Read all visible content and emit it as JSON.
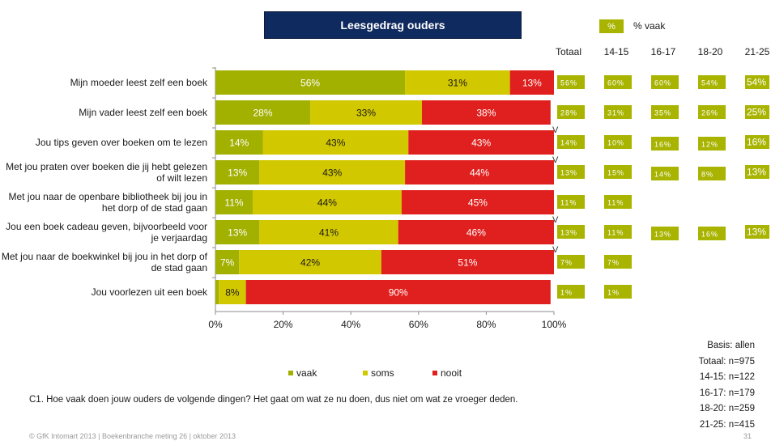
{
  "title": "Leesgedrag ouders",
  "top_legend": {
    "swatch_text": "%",
    "label": "% vaak",
    "color": "#a8b400"
  },
  "columns": [
    "Totaal",
    "14-15",
    "16-17",
    "18-20",
    "21-25"
  ],
  "colors": {
    "vaak": "#a2b000",
    "soms": "#d2c800",
    "nooit": "#e0201e",
    "badge": "#a8b400"
  },
  "legend": [
    "vaak",
    "soms",
    "nooit"
  ],
  "question": "C1. Hoe vaak doen jouw ouders de volgende dingen? Het gaat om wat ze nu doen, dus niet om wat ze vroeger deden.",
  "footer": "© GfK Intomart 2013 | Boekenbranche meting 26 | oktober 2013",
  "page_number": "31",
  "basis": [
    "Basis: allen",
    "Totaal: n=975",
    "14-15: n=122",
    "16-17: n=179",
    "18-20: n=259",
    "21-25: n=415"
  ],
  "chart_data": {
    "type": "bar",
    "orientation": "horizontal",
    "stacked": true,
    "x_ticks": [
      "0%",
      "20%",
      "40%",
      "60%",
      "80%",
      "100%"
    ],
    "xlim": [
      0,
      100
    ],
    "categories": [
      "Mijn moeder leest zelf een boek",
      "Mijn vader leest zelf een boek",
      "Jou tips geven over boeken om te lezen",
      "Met jou praten over boeken die jij hebt gelezen of wilt lezen",
      "Met jou naar de openbare bibliotheek bij jou in het dorp of de stad gaan",
      "Jou een boek cadeau geven, bijvoorbeeld voor je verjaardag",
      "Met jou naar de boekwinkel bij jou in het dorp of de stad gaan",
      "Jou voorlezen uit een boek"
    ],
    "series": [
      {
        "name": "vaak",
        "values": [
          56,
          28,
          14,
          13,
          11,
          13,
          7,
          1
        ]
      },
      {
        "name": "soms",
        "values": [
          31,
          33,
          43,
          43,
          44,
          41,
          42,
          8
        ]
      },
      {
        "name": "nooit",
        "values": [
          13,
          38,
          43,
          44,
          45,
          46,
          51,
          90
        ]
      }
    ],
    "vaak_by_age": [
      [
        "56%",
        "60%",
        "60%",
        "54%",
        "54%"
      ],
      [
        "28%",
        "31%",
        "35%",
        "26%",
        "25%"
      ],
      [
        "14%",
        "10%",
        "16%",
        "12%",
        "16%"
      ],
      [
        "13%",
        "15%",
        "14%",
        "8%",
        "13%"
      ],
      [
        "11%",
        "11%",
        "",
        "",
        ""
      ],
      [
        "13%",
        "11%",
        "13%",
        "16%",
        "13%"
      ],
      [
        "7%",
        "7%",
        "",
        "",
        ""
      ],
      [
        "1%",
        "1%",
        "",
        "",
        ""
      ]
    ],
    "v_markers": [
      "",
      "",
      "V",
      "V",
      "",
      "V",
      "V",
      ""
    ]
  }
}
